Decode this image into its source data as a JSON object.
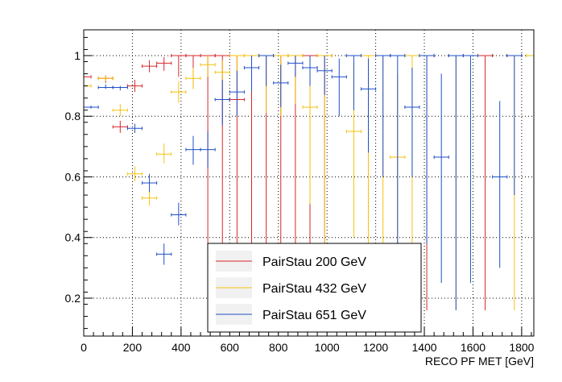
{
  "chart_data": {
    "type": "scatter",
    "title": "",
    "xlabel": "RECO PF MET [GeV]",
    "ylabel": "",
    "xlim": [
      0,
      1850
    ],
    "ylim": [
      0.075,
      1.085
    ],
    "xticks": [
      0,
      200,
      400,
      600,
      800,
      1000,
      1200,
      1400,
      1600,
      1800
    ],
    "yticks": [
      0.2,
      0.4,
      0.6,
      0.8,
      1
    ],
    "grid": true,
    "legend_position": "bottom-center",
    "series": [
      {
        "name": "PairStau 200 GeV",
        "color": "#d62728",
        "points": [
          {
            "x": 0,
            "xerr": 30,
            "y": 0.93,
            "ylo": 0.91,
            "yhi": 0.945
          },
          {
            "x": 90,
            "xerr": 30,
            "y": 0.925,
            "ylo": 0.91,
            "yhi": 0.935
          },
          {
            "x": 150,
            "xerr": 30,
            "y": 0.765,
            "ylo": 0.745,
            "yhi": 0.785
          },
          {
            "x": 210,
            "xerr": 30,
            "y": 0.9,
            "ylo": 0.88,
            "yhi": 0.92
          },
          {
            "x": 270,
            "xerr": 30,
            "y": 0.965,
            "ylo": 0.945,
            "yhi": 0.985
          },
          {
            "x": 330,
            "xerr": 30,
            "y": 0.975,
            "ylo": 0.95,
            "yhi": 0.995
          },
          {
            "x": 390,
            "xerr": 30,
            "y": 1.0,
            "ylo": 0.93,
            "yhi": 1.0
          },
          {
            "x": 450,
            "xerr": 30,
            "y": 1.0,
            "ylo": 0.89,
            "yhi": 1.0
          },
          {
            "x": 510,
            "xerr": 30,
            "y": 1.0,
            "ylo": 0.16,
            "yhi": 1.0
          },
          {
            "x": 570,
            "xerr": 30,
            "y": 1.0,
            "ylo": 0.16,
            "yhi": 1.0
          },
          {
            "x": 630,
            "xerr": 30,
            "y": 0.855,
            "ylo": 0.3,
            "yhi": 1.0
          },
          {
            "x": 690,
            "xerr": 30,
            "y": 1.0,
            "ylo": 0.16,
            "yhi": 1.0
          },
          {
            "x": 750,
            "xerr": 30,
            "y": 1.0,
            "ylo": 0.16,
            "yhi": 1.0
          },
          {
            "x": 810,
            "xerr": 30,
            "y": 1.0,
            "ylo": 0.16,
            "yhi": 1.0
          },
          {
            "x": 870,
            "xerr": 30,
            "y": 1.0,
            "ylo": 0.16,
            "yhi": 1.0
          },
          {
            "x": 930,
            "xerr": 30,
            "y": 1.0,
            "ylo": 0.16,
            "yhi": 1.0
          },
          {
            "x": 990,
            "xerr": 30,
            "y": 1.0,
            "ylo": 0.16,
            "yhi": 1.0
          },
          {
            "x": 1410,
            "xerr": 30,
            "y": 1.0,
            "ylo": 0.16,
            "yhi": 1.0
          },
          {
            "x": 1650,
            "xerr": 30,
            "y": 1.0,
            "ylo": 0.16,
            "yhi": 1.0
          }
        ]
      },
      {
        "name": "PairStau 432 GeV",
        "color": "#f4c20d",
        "points": [
          {
            "x": 0,
            "xerr": 30,
            "y": 0.9,
            "ylo": 0.89,
            "yhi": 0.91
          },
          {
            "x": 90,
            "xerr": 30,
            "y": 0.925,
            "ylo": 0.915,
            "yhi": 0.935
          },
          {
            "x": 150,
            "xerr": 30,
            "y": 0.82,
            "ylo": 0.8,
            "yhi": 0.84
          },
          {
            "x": 210,
            "xerr": 30,
            "y": 0.61,
            "ylo": 0.585,
            "yhi": 0.635
          },
          {
            "x": 270,
            "xerr": 30,
            "y": 0.53,
            "ylo": 0.505,
            "yhi": 0.56
          },
          {
            "x": 330,
            "xerr": 30,
            "y": 0.675,
            "ylo": 0.645,
            "yhi": 0.71
          },
          {
            "x": 390,
            "xerr": 30,
            "y": 0.88,
            "ylo": 0.845,
            "yhi": 0.915
          },
          {
            "x": 450,
            "xerr": 30,
            "y": 0.925,
            "ylo": 0.89,
            "yhi": 0.96
          },
          {
            "x": 510,
            "xerr": 30,
            "y": 0.97,
            "ylo": 0.93,
            "yhi": 1.0
          },
          {
            "x": 570,
            "xerr": 30,
            "y": 0.945,
            "ylo": 0.9,
            "yhi": 0.985
          },
          {
            "x": 630,
            "xerr": 30,
            "y": 1.0,
            "ylo": 0.9,
            "yhi": 1.0
          },
          {
            "x": 690,
            "xerr": 30,
            "y": 1.0,
            "ylo": 0.89,
            "yhi": 1.0
          },
          {
            "x": 750,
            "xerr": 30,
            "y": 1.0,
            "ylo": 0.81,
            "yhi": 1.0
          },
          {
            "x": 810,
            "xerr": 30,
            "y": 1.0,
            "ylo": 0.8,
            "yhi": 1.0
          },
          {
            "x": 870,
            "xerr": 30,
            "y": 1.0,
            "ylo": 0.84,
            "yhi": 1.0
          },
          {
            "x": 930,
            "xerr": 30,
            "y": 0.83,
            "ylo": 0.51,
            "yhi": 1.0
          },
          {
            "x": 990,
            "xerr": 30,
            "y": 1.0,
            "ylo": 0.26,
            "yhi": 1.0
          },
          {
            "x": 1110,
            "xerr": 30,
            "y": 0.75,
            "ylo": 0.4,
            "yhi": 0.98
          },
          {
            "x": 1170,
            "xerr": 30,
            "y": 1.0,
            "ylo": 0.3,
            "yhi": 1.0
          },
          {
            "x": 1230,
            "xerr": 30,
            "y": 1.0,
            "ylo": 0.16,
            "yhi": 1.0
          },
          {
            "x": 1290,
            "xerr": 30,
            "y": 0.665,
            "ylo": 0.3,
            "yhi": 0.94
          },
          {
            "x": 1350,
            "xerr": 30,
            "y": 1.0,
            "ylo": 0.16,
            "yhi": 1.0
          },
          {
            "x": 1530,
            "xerr": 30,
            "y": 1.0,
            "ylo": 0.16,
            "yhi": 1.0
          },
          {
            "x": 1770,
            "xerr": 30,
            "y": 1.0,
            "ylo": 0.16,
            "yhi": 1.0
          },
          {
            "x": 1850,
            "xerr": 30,
            "y": 1.0,
            "ylo": 0.16,
            "yhi": 1.0
          }
        ]
      },
      {
        "name": "PairStau 651 GeV",
        "color": "#1f4fc8",
        "points": [
          {
            "x": 30,
            "xerr": 30,
            "y": 0.83,
            "ylo": 0.825,
            "yhi": 0.835
          },
          {
            "x": 90,
            "xerr": 30,
            "y": 0.895,
            "ylo": 0.89,
            "yhi": 0.905
          },
          {
            "x": 150,
            "xerr": 30,
            "y": 0.895,
            "ylo": 0.885,
            "yhi": 0.9
          },
          {
            "x": 210,
            "xerr": 30,
            "y": 0.76,
            "ylo": 0.745,
            "yhi": 0.775
          },
          {
            "x": 270,
            "xerr": 30,
            "y": 0.58,
            "ylo": 0.55,
            "yhi": 0.61
          },
          {
            "x": 330,
            "xerr": 30,
            "y": 0.345,
            "ylo": 0.31,
            "yhi": 0.38
          },
          {
            "x": 390,
            "xerr": 30,
            "y": 0.475,
            "ylo": 0.44,
            "yhi": 0.515
          },
          {
            "x": 450,
            "xerr": 30,
            "y": 0.69,
            "ylo": 0.64,
            "yhi": 0.735
          },
          {
            "x": 510,
            "xerr": 30,
            "y": 0.69,
            "ylo": 0.63,
            "yhi": 0.75
          },
          {
            "x": 570,
            "xerr": 30,
            "y": 0.855,
            "ylo": 0.77,
            "yhi": 0.92
          },
          {
            "x": 630,
            "xerr": 30,
            "y": 0.88,
            "ylo": 0.8,
            "yhi": 0.95
          },
          {
            "x": 690,
            "xerr": 30,
            "y": 0.96,
            "ylo": 0.88,
            "yhi": 1.0
          },
          {
            "x": 750,
            "xerr": 30,
            "y": 1.0,
            "ylo": 0.9,
            "yhi": 1.0
          },
          {
            "x": 810,
            "xerr": 30,
            "y": 0.91,
            "ylo": 0.83,
            "yhi": 0.97
          },
          {
            "x": 870,
            "xerr": 30,
            "y": 0.975,
            "ylo": 0.93,
            "yhi": 1.0
          },
          {
            "x": 930,
            "xerr": 30,
            "y": 0.96,
            "ylo": 0.9,
            "yhi": 1.0
          },
          {
            "x": 990,
            "xerr": 30,
            "y": 0.95,
            "ylo": 0.87,
            "yhi": 1.0
          },
          {
            "x": 1050,
            "xerr": 30,
            "y": 0.93,
            "ylo": 0.8,
            "yhi": 0.99
          },
          {
            "x": 1110,
            "xerr": 30,
            "y": 1.0,
            "ylo": 0.82,
            "yhi": 1.0
          },
          {
            "x": 1170,
            "xerr": 30,
            "y": 0.89,
            "ylo": 0.68,
            "yhi": 0.99
          },
          {
            "x": 1230,
            "xerr": 30,
            "y": 1.0,
            "ylo": 0.6,
            "yhi": 1.0
          },
          {
            "x": 1290,
            "xerr": 30,
            "y": 1.0,
            "ylo": 0.3,
            "yhi": 1.0
          },
          {
            "x": 1350,
            "xerr": 30,
            "y": 0.83,
            "ylo": 0.6,
            "yhi": 0.96
          },
          {
            "x": 1410,
            "xerr": 30,
            "y": 1.0,
            "ylo": 0.38,
            "yhi": 1.0
          },
          {
            "x": 1470,
            "xerr": 30,
            "y": 0.665,
            "ylo": 0.25,
            "yhi": 0.94
          },
          {
            "x": 1530,
            "xerr": 30,
            "y": 1.0,
            "ylo": 0.16,
            "yhi": 1.0
          },
          {
            "x": 1590,
            "xerr": 30,
            "y": 1.0,
            "ylo": 0.25,
            "yhi": 1.0
          },
          {
            "x": 1710,
            "xerr": 30,
            "y": 0.6,
            "ylo": 0.3,
            "yhi": 0.85
          },
          {
            "x": 1770,
            "xerr": 30,
            "y": 1.0,
            "ylo": 0.54,
            "yhi": 1.0
          }
        ]
      }
    ]
  }
}
